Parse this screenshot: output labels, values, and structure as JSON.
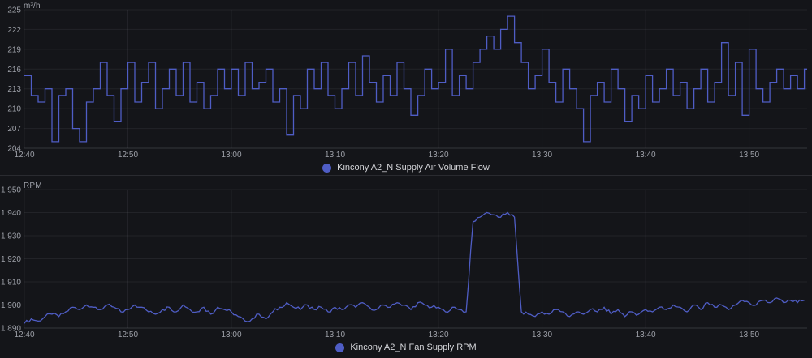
{
  "page": {
    "background": "#141519",
    "grid_color": "rgba(204,204,220,0.08)",
    "axis_line_color": "rgba(204,204,220,0.18)",
    "tick_text_color": "#9da0a8"
  },
  "panels": [
    {
      "legend_label": "Kincony A2_N Supply Air Volume Flow",
      "legend_color": "#4f5dc5"
    },
    {
      "legend_label": "Kincony A2_N Fan Supply RPM",
      "legend_color": "#4f5dc5"
    }
  ],
  "chart_data": [
    {
      "type": "line",
      "line_style": "step-after",
      "series_name": "Kincony A2_N Supply Air Volume Flow",
      "unit": "m³/h",
      "color": "#4f5dc5",
      "grid": true,
      "legend_position": "bottom-center",
      "x_start_label": "12:40",
      "x_interval_seconds": 40,
      "x_domain_minutes": [
        0,
        75.6
      ],
      "x_tick_minutes": [
        0,
        10,
        20,
        30,
        40,
        50,
        60,
        70
      ],
      "x_tick_labels": [
        "12:40",
        "12:50",
        "13:00",
        "13:10",
        "13:20",
        "13:30",
        "13:40",
        "13:50"
      ],
      "ylim": [
        204,
        225
      ],
      "y_ticks": [
        204,
        207,
        210,
        213,
        216,
        219,
        222,
        225
      ],
      "y_tick_labels": [
        "204",
        "207",
        "210",
        "213",
        "216",
        "219",
        "222",
        "225"
      ],
      "values": [
        215,
        212,
        211,
        213,
        205,
        212,
        213,
        207,
        205,
        211,
        213,
        217,
        212,
        208,
        213,
        217,
        211,
        214,
        217,
        210,
        213,
        216,
        212,
        217,
        211,
        214,
        210,
        212,
        216,
        213,
        216,
        212,
        217,
        213,
        214,
        216,
        211,
        213,
        206,
        212,
        210,
        216,
        213,
        217,
        212,
        210,
        213,
        217,
        212,
        218,
        214,
        211,
        215,
        212,
        217,
        213,
        209,
        212,
        216,
        213,
        214,
        219,
        212,
        215,
        213,
        217,
        219,
        221,
        219,
        222,
        224,
        220,
        217,
        213,
        215,
        219,
        214,
        211,
        216,
        213,
        210,
        205,
        212,
        214,
        211,
        216,
        213,
        208,
        212,
        210,
        215,
        211,
        213,
        216,
        212,
        214,
        210,
        213,
        216,
        211,
        214,
        220,
        212,
        217,
        209,
        219,
        213,
        211,
        214,
        216,
        213,
        215,
        213,
        216
      ]
    },
    {
      "type": "line",
      "line_style": "linear",
      "series_name": "Kincony A2_N Fan Supply RPM",
      "unit": "RPM",
      "color": "#4f5dc5",
      "grid": true,
      "legend_position": "bottom-center",
      "x_start_label": "12:40",
      "x_interval_seconds": 40,
      "x_domain_minutes": [
        0,
        75.6
      ],
      "x_tick_minutes": [
        0,
        10,
        20,
        30,
        40,
        50,
        60,
        70
      ],
      "x_tick_labels": [
        "12:40",
        "12:50",
        "13:00",
        "13:10",
        "13:20",
        "13:30",
        "13:40",
        "13:50"
      ],
      "ylim": [
        1890,
        1950
      ],
      "y_ticks": [
        1890,
        1900,
        1910,
        1920,
        1930,
        1940,
        1950
      ],
      "y_tick_labels": [
        "1 890",
        "1 900",
        "1 910",
        "1 920",
        "1 930",
        "1 940",
        "1 950"
      ],
      "render_upsample": 3,
      "render_jitter": 0.8,
      "values": [
        1892,
        1894,
        1893,
        1895,
        1896,
        1895,
        1897,
        1899,
        1898,
        1900,
        1899,
        1898,
        1900,
        1899,
        1897,
        1898,
        1900,
        1899,
        1897,
        1896,
        1898,
        1899,
        1897,
        1900,
        1898,
        1897,
        1899,
        1896,
        1899,
        1898,
        1897,
        1895,
        1893,
        1894,
        1896,
        1894,
        1897,
        1899,
        1901,
        1899,
        1898,
        1900,
        1898,
        1899,
        1897,
        1899,
        1898,
        1900,
        1899,
        1901,
        1899,
        1898,
        1900,
        1899,
        1901,
        1900,
        1898,
        1901,
        1900,
        1899,
        1899,
        1897,
        1899,
        1898,
        1897,
        1936,
        1938,
        1940,
        1939,
        1938,
        1940,
        1938,
        1897,
        1896,
        1895,
        1897,
        1896,
        1898,
        1897,
        1895,
        1897,
        1896,
        1898,
        1897,
        1899,
        1896,
        1898,
        1895,
        1897,
        1896,
        1898,
        1897,
        1899,
        1898,
        1900,
        1899,
        1897,
        1900,
        1898,
        1901,
        1899,
        1900,
        1898,
        1900,
        1902,
        1901,
        1900,
        1902,
        1901,
        1903,
        1901,
        1902,
        1901,
        1902
      ]
    }
  ]
}
